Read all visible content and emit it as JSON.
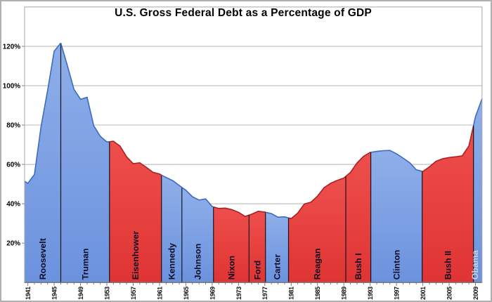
{
  "chart_data": {
    "type": "area",
    "title": "U.S. Gross Federal Debt as a Percentage of GDP",
    "xlabel": "",
    "ylabel": "",
    "unit": "percent of GDP",
    "grid": true,
    "xlim": [
      1940.5,
      2010.0
    ],
    "ylim": [
      0,
      140
    ],
    "year_start": 1940,
    "values": [
      52.4,
      50.4,
      54.9,
      79.1,
      97.6,
      117.5,
      121.7,
      110.3,
      98.2,
      93.1,
      94.1,
      79.7,
      74.3,
      71.4,
      71.8,
      69.3,
      63.9,
      60.4,
      60.8,
      58.5,
      56.0,
      55.1,
      53.4,
      51.8,
      49.3,
      46.9,
      43.6,
      41.9,
      42.5,
      38.6,
      37.6,
      37.8,
      37.0,
      35.7,
      33.6,
      34.7,
      36.2,
      35.8,
      35.0,
      33.2,
      33.4,
      32.5,
      35.3,
      39.9,
      40.8,
      43.9,
      48.2,
      50.4,
      51.9,
      53.1,
      55.9,
      60.7,
      64.1,
      66.1,
      66.6,
      67.0,
      67.1,
      65.4,
      63.2,
      60.9,
      57.3,
      56.4,
      58.8,
      61.6,
      62.9,
      63.5,
      63.9,
      64.4,
      69.4,
      84.2,
      93.4
    ],
    "yticks": [
      {
        "label": "20%",
        "value": 20
      },
      {
        "label": "40%",
        "value": 40
      },
      {
        "label": "60%",
        "value": 60
      },
      {
        "label": "80%",
        "value": 80
      },
      {
        "label": "100%",
        "value": 100
      },
      {
        "label": "120%",
        "value": 120
      }
    ],
    "xticks": [
      1941,
      1945,
      1949,
      1953,
      1957,
      1961,
      1965,
      1969,
      1973,
      1977,
      1981,
      1985,
      1989,
      1993,
      1997,
      2001,
      2005,
      2009
    ],
    "presidents": [
      {
        "name": "Roosevelt",
        "party": "D",
        "start": 1940.5,
        "end": 1946.0
      },
      {
        "name": "Truman",
        "party": "D",
        "start": 1946.0,
        "end": 1953.4
      },
      {
        "name": "Eisenhower",
        "party": "R",
        "start": 1953.4,
        "end": 1961.3
      },
      {
        "name": "Kennedy",
        "party": "D",
        "start": 1961.3,
        "end": 1964.4
      },
      {
        "name": "Johnson",
        "party": "D",
        "start": 1964.4,
        "end": 1969.2
      },
      {
        "name": "Nixon",
        "party": "R",
        "start": 1969.2,
        "end": 1974.6
      },
      {
        "name": "Ford",
        "party": "R",
        "start": 1974.6,
        "end": 1977.1
      },
      {
        "name": "Carter",
        "party": "D",
        "start": 1977.1,
        "end": 1980.6
      },
      {
        "name": "Reagan",
        "party": "R",
        "start": 1980.6,
        "end": 1989.3
      },
      {
        "name": "Bush I",
        "party": "R",
        "start": 1989.3,
        "end": 1993.1
      },
      {
        "name": "Clinton",
        "party": "D",
        "start": 1993.1,
        "end": 2000.9
      },
      {
        "name": "Bush II",
        "party": "R",
        "start": 2000.9,
        "end": 2008.7
      },
      {
        "name": "Obama",
        "party": "D",
        "start": 2008.7,
        "end": 2010.0
      }
    ],
    "colors": {
      "democrat_fill_top": "#8fafe9",
      "democrat_fill_bottom": "#6b92de",
      "republican_fill_top": "#ee4f4c",
      "republican_fill_bottom": "#df3434",
      "democrat_edge": "#3c6ac0",
      "republican_edge": "#a82020",
      "grid": "#b3b3b3",
      "plot_border": "#a6a6a6",
      "axis": "#7a7a7a",
      "divider": "#14141e",
      "president_label": "#0d0d26",
      "obama_label": "#cdd2da",
      "background": "#ffffff"
    }
  }
}
